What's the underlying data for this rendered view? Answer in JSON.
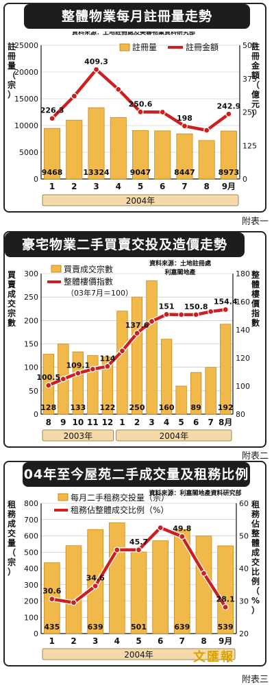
{
  "colors": {
    "bar": "#f1b94a",
    "bar_stroke": "#c68a1c",
    "line": "#cc1f1f",
    "band": "#f5d9a8"
  },
  "attachments": [
    "附表一",
    "附表二",
    "附表三"
  ],
  "watermark": "文匯報",
  "chart_data": [
    {
      "type": "bar",
      "title": "整體物業每月註冊量走勢",
      "source": "資料來源：土地註冊處及美聯物業資料研究部",
      "left_axis_label": "註冊量（宗）",
      "right_axis_label": "註冊金額（億元）",
      "legend": [
        "註冊量",
        "註冊金額"
      ],
      "categories": [
        "1",
        "2",
        "3",
        "4",
        "5",
        "6",
        "7",
        "8",
        "9月"
      ],
      "year_band": [
        {
          "label": "2004年",
          "from": 0,
          "to": 8
        }
      ],
      "bar_series": {
        "name": "註冊量",
        "values": [
          9468,
          11000,
          13324,
          11500,
          9047,
          9000,
          8447,
          7200,
          8973
        ],
        "labels": [
          "9468",
          "",
          "13324",
          "",
          "9047",
          "",
          "8447",
          "",
          "8973"
        ]
      },
      "line_series": {
        "name": "註冊金額",
        "values": [
          226.3,
          310,
          409.3,
          335,
          250.6,
          250,
          198,
          182,
          242.9
        ],
        "labels": [
          "226.3",
          "",
          "409.3",
          "",
          "250.6",
          "",
          "198",
          "",
          "242.9"
        ]
      },
      "ylim_left": [
        0,
        25000
      ],
      "yticks_left": [
        0,
        5000,
        10000,
        15000,
        20000,
        25000
      ],
      "ylim_right": [
        0,
        500
      ],
      "yticks_right": [
        0,
        125,
        250,
        375,
        500
      ],
      "yticks_right_labels": [
        "0",
        "125",
        "250",
        "375",
        "500"
      ]
    },
    {
      "type": "bar",
      "title": "豪宅物業二手買賣交投及造價走勢",
      "source": "資料來源：土地註冊處 利嘉閣地產",
      "left_axis_label": "買賣成交宗數",
      "right_axis_label": "整體樓價指數",
      "legend": [
        "買賣成交宗數",
        "整體樓價指數",
        "（03年7月＝100）"
      ],
      "categories": [
        "8",
        "9",
        "10",
        "11",
        "12",
        "1",
        "2",
        "3",
        "4",
        "5",
        "6",
        "7",
        "8月"
      ],
      "year_band": [
        {
          "label": "2003年",
          "from": 0,
          "to": 4
        },
        {
          "label": "2004年",
          "from": 5,
          "to": 12
        }
      ],
      "bar_series": {
        "name": "買賣成交宗數",
        "values": [
          128,
          150,
          133,
          125,
          122,
          220,
          250,
          285,
          160,
          60,
          89,
          100,
          192
        ],
        "labels": [
          "128",
          "",
          "133",
          "",
          "122",
          "",
          "250",
          "",
          "160",
          "",
          "89",
          "",
          "192"
        ]
      },
      "line_series": {
        "name": "整體樓價指數",
        "values": [
          100.5,
          105,
          109.1,
          112,
          114,
          125,
          137.6,
          146,
          151,
          150.8,
          150.8,
          153,
          154.4
        ],
        "labels": [
          "100.5",
          "",
          "109.1",
          "",
          "114",
          "",
          "137.6",
          "",
          "151",
          "",
          "150.8",
          "",
          "154.4"
        ]
      },
      "ylim_left": [
        0,
        300
      ],
      "yticks_left": [
        0,
        50,
        100,
        150,
        200,
        250,
        300
      ],
      "ylim_right": [
        80,
        180
      ],
      "yticks_right": [
        80,
        100,
        120,
        140,
        160,
        180
      ],
      "yticks_right_labels": [
        "80",
        "100",
        "120",
        "140",
        "160",
        "180"
      ]
    },
    {
      "type": "bar",
      "title": "04年至今屋苑二手成交量及租務比例",
      "source": "資料來源：利嘉閣地產資料研究部",
      "left_axis_label": "租務成交量（宗）",
      "right_axis_label": "租務佔整體成交比例（%）",
      "legend": [
        "每月二手租務交投量（宗）",
        "租務佔整體成交比例（%）"
      ],
      "categories": [
        "1",
        "2",
        "3",
        "4",
        "5",
        "6",
        "7",
        "8",
        "9月"
      ],
      "year_band": [
        {
          "label": "2004年",
          "from": 0,
          "to": 8
        }
      ],
      "bar_series": {
        "name": "每月二手租務交投量",
        "values": [
          435,
          540,
          639,
          680,
          501,
          570,
          639,
          600,
          539
        ],
        "labels": [
          "435",
          "",
          "639",
          "",
          "501",
          "",
          "639",
          "",
          "539"
        ]
      },
      "line_series": {
        "name": "租務佔整體成交比例",
        "values": [
          30.6,
          29.5,
          34.6,
          45.7,
          45.7,
          52.5,
          49.8,
          38.5,
          28.1
        ],
        "labels": [
          "30.6",
          "",
          "34.6",
          "",
          "45.7",
          "",
          "49.8",
          "",
          "28.1"
        ]
      },
      "ylim_left": [
        0,
        800
      ],
      "yticks_left": [
        0,
        100,
        200,
        300,
        400,
        500,
        600,
        700,
        800
      ],
      "ylim_right": [
        20,
        60
      ],
      "yticks_right": [
        20,
        30,
        40,
        50,
        60
      ],
      "yticks_right_labels": [
        "20",
        "30",
        "40",
        "50",
        "60"
      ]
    }
  ]
}
